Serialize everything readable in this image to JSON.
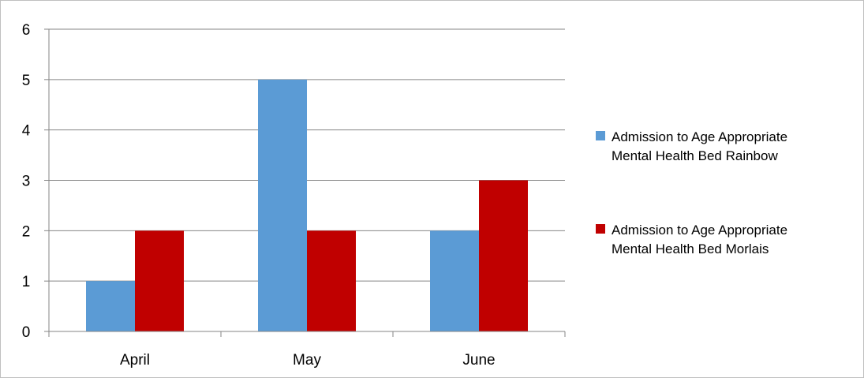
{
  "chart_data": {
    "type": "bar",
    "categories": [
      "April",
      "May",
      "June"
    ],
    "series": [
      {
        "name": "Admission to Age Appropriate Mental Health Bed Rainbow",
        "name_lines": [
          "Admission to Age Appropriate",
          "Mental Health Bed Rainbow"
        ],
        "values": [
          1,
          5,
          2
        ],
        "color": "#5b9bd5"
      },
      {
        "name": "Admission to Age Appropriate Mental Health Bed Morlais",
        "name_lines": [
          "Admission to Age Appropriate",
          "Mental Health Bed Morlais"
        ],
        "values": [
          2,
          2,
          3
        ],
        "color": "#c00000"
      }
    ],
    "title": "",
    "xlabel": "",
    "ylabel": "",
    "ylim": [
      0,
      6
    ],
    "yticks": [
      "0",
      "1",
      "2",
      "3",
      "4",
      "5",
      "6"
    ],
    "grid": true,
    "legend_position": "right",
    "gridline_color": "#868686"
  }
}
